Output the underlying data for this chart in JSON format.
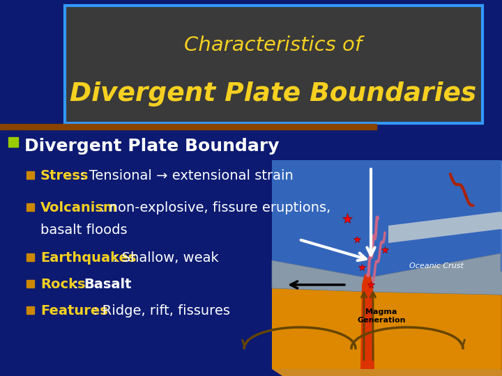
{
  "bg_color": "#0c1a72",
  "title_box_bg": "#3a3a3a",
  "title_box_border": "#3399ff",
  "title_line1": "Characteristics of",
  "title_line2": "Divergent Plate Boundaries",
  "title_color": "#f5d020",
  "main_bullet_text": "Divergent Plate Boundary",
  "main_bullet_color": "#ffffff",
  "main_bullet_sq_color": "#bbcc00",
  "sub_bullet_sq_color": "#cc8800",
  "sub_label_color": "#f5d020",
  "sub_rest_color": "#ffffff",
  "figsize": [
    7.2,
    5.4
  ],
  "dpi": 100
}
